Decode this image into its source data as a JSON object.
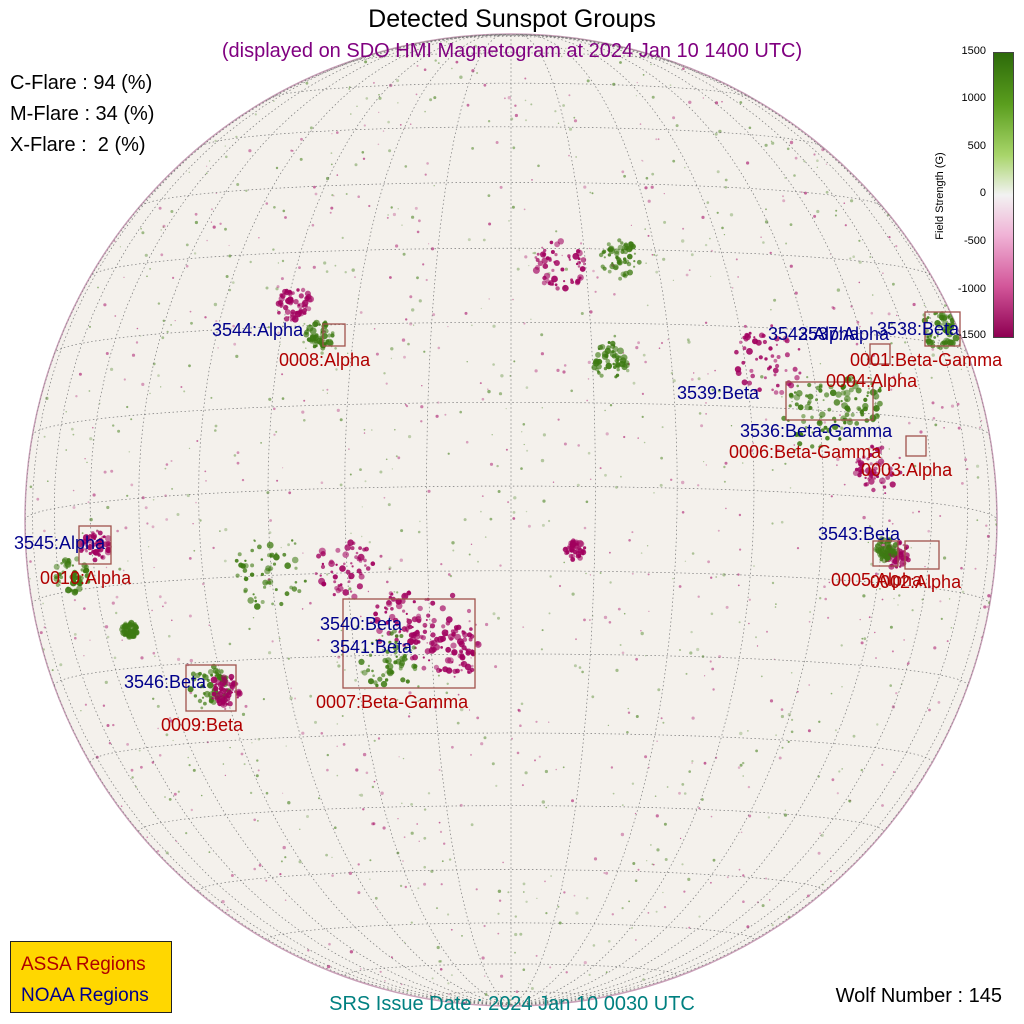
{
  "title": "Detected Sunspot Groups",
  "subtitle": "(displayed on SDO HMI Magnetogram at 2024 Jan 10 1400 UTC)",
  "flares": {
    "c": "C-Flare : 94 (%)",
    "m": "M-Flare : 34 (%)",
    "x": "X-Flare :  2 (%)"
  },
  "colorbar": {
    "label": "Field Strength (G)",
    "ticks": [
      "1500",
      "1000",
      "500",
      "0",
      "-500",
      "-1000",
      "-1500"
    ],
    "colors": {
      "positive": "#3d7a12",
      "negative": "#a1005e",
      "background": "#f4f1ec"
    }
  },
  "regions": {
    "noaa": [
      {
        "label": "3544:Alpha"
      },
      {
        "label": "3542:Alpha"
      },
      {
        "label": "3537:Alpha"
      },
      {
        "label": "3538:Beta"
      },
      {
        "label": "3539:Beta"
      },
      {
        "label": "3536:Beta-Gamma"
      },
      {
        "label": "3543:Beta"
      },
      {
        "label": "3545:Alpha"
      },
      {
        "label": "3540:Beta"
      },
      {
        "label": "3541:Beta"
      },
      {
        "label": "3546:Beta"
      }
    ],
    "assa": [
      {
        "label": "0008:Alpha"
      },
      {
        "label": "0001:Beta-Gamma"
      },
      {
        "label": "0004:Alpha"
      },
      {
        "label": "0006:Beta-Gamma"
      },
      {
        "label": "0003:Alpha"
      },
      {
        "label": "0005:Alpha"
      },
      {
        "label": "0002:Alpha"
      },
      {
        "label": "0010:Alpha"
      },
      {
        "label": "0007:Beta-Gamma"
      },
      {
        "label": "0009:Beta"
      }
    ]
  },
  "legend": {
    "assa": "ASSA Regions",
    "noaa": "NOAA Regions"
  },
  "issue_date": "SRS Issue Date : 2024 Jan 10 0030 UTC",
  "wolf_number": "Wolf Number : 145",
  "style": {
    "noaa_color": "#00008b",
    "assa_color": "#b00000",
    "box_color": "#a0524d"
  }
}
